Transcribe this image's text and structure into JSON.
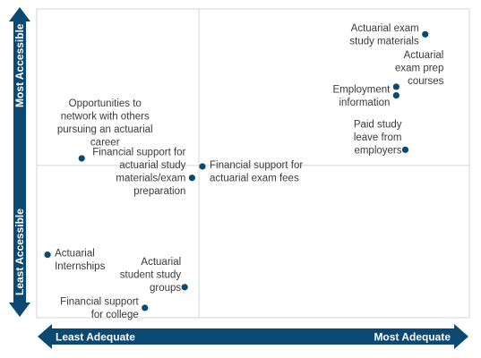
{
  "colors": {
    "accent": "#0b4872",
    "grid": "#d6d6d6",
    "text": "#3a3a3a"
  },
  "chart_data": {
    "type": "scatter",
    "title": "",
    "xlabel": {
      "low": "Least Adequate",
      "high": "Most Adequate"
    },
    "ylabel": {
      "low": "Least Accessible",
      "high": "Most Accessible"
    },
    "xlim": [
      0,
      100
    ],
    "ylim": [
      0,
      100
    ],
    "grid": true,
    "quadrant_lines": {
      "x": 37.5,
      "y": 49.3
    },
    "points": [
      {
        "label": [
          "Actuarial exam",
          "study materials"
        ],
        "x": 89.8,
        "y": 91.8,
        "label_pos": "left"
      },
      {
        "label": [
          "Actuarial",
          "exam prep",
          "courses"
        ],
        "x": 83.1,
        "y": 74.8,
        "label_pos": "right-above"
      },
      {
        "label": [
          "Employment",
          "information"
        ],
        "x": 83.1,
        "y": 72.0,
        "label_pos": "left"
      },
      {
        "label": [
          "Paid study",
          "leave from",
          "employers"
        ],
        "x": 85.2,
        "y": 54.4,
        "label_pos": "left-above"
      },
      {
        "label": [
          "Opportunities to",
          "network with others",
          "pursuing an actuarial",
          "career"
        ],
        "x": 10.4,
        "y": 51.6,
        "label_pos": "above-right"
      },
      {
        "label": [
          "Financial support for",
          "actuarial exam fees"
        ],
        "x": 38.3,
        "y": 49.0,
        "label_pos": "right"
      },
      {
        "label": [
          "Financial support for",
          "actuarial study",
          "materials/exam",
          "preparation"
        ],
        "x": 35.9,
        "y": 45.3,
        "label_pos": "left"
      },
      {
        "label": [
          "Actuarial",
          "Internships"
        ],
        "x": 2.5,
        "y": 20.4,
        "label_pos": "right"
      },
      {
        "label": [
          "Actuarial",
          "student study",
          "groups"
        ],
        "x": 34.2,
        "y": 9.9,
        "label_pos": "left-above"
      },
      {
        "label": [
          "Financial support",
          "for college"
        ],
        "x": 25.0,
        "y": 3.2,
        "label_pos": "left"
      }
    ]
  }
}
